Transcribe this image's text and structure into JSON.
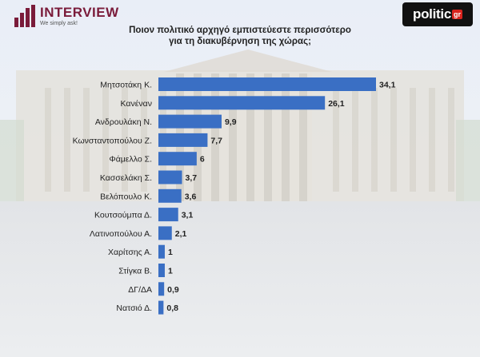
{
  "brand": {
    "name": "INTERVIEW",
    "tagline": "We simply ask!"
  },
  "partner": {
    "name": "politic",
    "suffix": "gr"
  },
  "colors": {
    "bar": "#3a6fc4",
    "label": "#222222",
    "brand": "#7a1b3a"
  },
  "chart_data": {
    "type": "bar",
    "orientation": "horizontal",
    "title": "Ποιον πολιτικό αρχηγό εμπιστεύεστε περισσότερο για τη διακυβέρνηση της χώρας;",
    "title_lines": [
      "Ποιον πολιτικό αρχηγό εμπιστεύεστε περισσότερο",
      "για τη διακυβέρνηση της χώρας;"
    ],
    "categories": [
      "Μητσοτάκη Κ.",
      "Κανέναν",
      "Ανδρουλάκη Ν.",
      "Κωνσταντοπούλου Ζ.",
      "Φάμελλο Σ.",
      "Κασσελάκη Σ.",
      "Βελόπουλο Κ.",
      "Κουτσούμπα Δ.",
      "Λατινοπούλου Α.",
      "Χαρίτσης Α.",
      "Στίγκα Β.",
      "ΔΓ/ΔΑ",
      "Νατσιό Δ."
    ],
    "values": [
      34.1,
      26.1,
      9.9,
      7.7,
      6,
      3.7,
      3.6,
      3.1,
      2.1,
      1,
      1,
      0.9,
      0.8
    ],
    "value_labels": [
      "34,1",
      "26,1",
      "9,9",
      "7,7",
      "6",
      "3,7",
      "3,6",
      "3,1",
      "2,1",
      "1",
      "1",
      "0,9",
      "0,8"
    ],
    "xlabel": "",
    "ylabel": "",
    "xlim": [
      0,
      34.1
    ],
    "grid": false,
    "legend": "none"
  }
}
